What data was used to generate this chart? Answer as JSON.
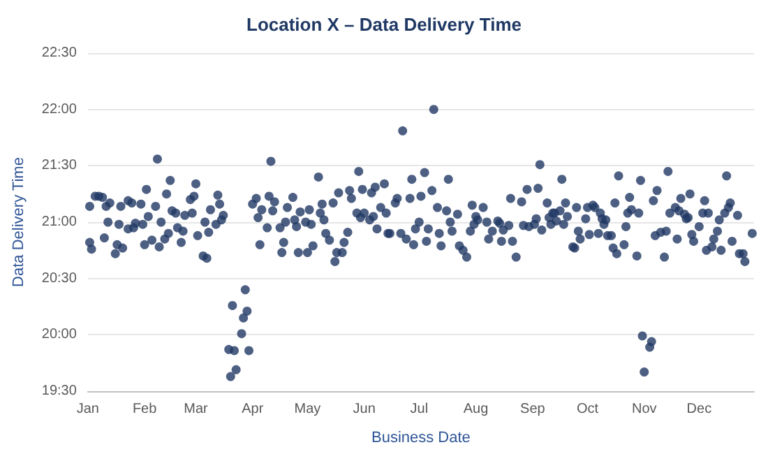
{
  "chart_data": {
    "type": "scatter",
    "title": "Location X – Data Delivery Time",
    "xlabel": "Business Date",
    "ylabel": "Data Delivery Time",
    "xlim": [
      "--01-01",
      "--12-31"
    ],
    "xticks": [
      {
        "value": "--01-01",
        "label": "Jan"
      },
      {
        "value": "--02-01",
        "label": "Feb"
      },
      {
        "value": "--03-01",
        "label": "Mar"
      },
      {
        "value": "--04-01",
        "label": "Apr"
      },
      {
        "value": "--05-01",
        "label": "May"
      },
      {
        "value": "--06-01",
        "label": "Jun"
      },
      {
        "value": "--07-01",
        "label": "Jul"
      },
      {
        "value": "--08-01",
        "label": "Aug"
      },
      {
        "value": "--09-01",
        "label": "Sep"
      },
      {
        "value": "--10-01",
        "label": "Oct"
      },
      {
        "value": "--11-01",
        "label": "Nov"
      },
      {
        "value": "--12-01",
        "label": "Dec"
      }
    ],
    "ylim": [
      19.5,
      22.5
    ],
    "yticks": [
      {
        "value": 19.5,
        "label": "19:30"
      },
      {
        "value": 20,
        "label": "20:00"
      },
      {
        "value": 20.5,
        "label": "20:30"
      },
      {
        "value": 21,
        "label": "21:00"
      },
      {
        "value": 21.5,
        "label": "21:30"
      },
      {
        "value": 22,
        "label": "22:00"
      },
      {
        "value": 22.5,
        "label": "22:30"
      }
    ],
    "grid": "y",
    "marker": "circle",
    "series": [
      {
        "color": "#203864",
        "x": [
          "--01-02",
          "--01-03",
          "--01-02",
          "--01-05",
          "--01-07",
          "--01-09",
          "--01-10",
          "--01-11",
          "--01-12",
          "--01-13",
          "--01-16",
          "--01-17",
          "--01-18",
          "--01-19",
          "--01-20",
          "--01-23",
          "--01-23",
          "--01-25",
          "--01-26",
          "--01-27",
          "--01-30",
          "--01-31",
          "--02-01",
          "--02-02",
          "--02-03",
          "--02-05",
          "--02-07",
          "--02-08",
          "--02-09",
          "--02-10",
          "--02-12",
          "--02-13",
          "--02-14",
          "--02-15",
          "--02-16",
          "--02-18",
          "--02-19",
          "--02-21",
          "--02-22",
          "--02-23",
          "--02-26",
          "--02-27",
          "--02-28",
          "--03-01",
          "--03-02",
          "--03-05",
          "--03-07",
          "--03-06",
          "--03-08",
          "--03-09",
          "--03-12",
          "--03-13",
          "--03-14",
          "--03-15",
          "--03-16",
          "--03-19",
          "--03-21",
          "--03-20",
          "--03-22",
          "--03-23",
          "--03-26",
          "--03-27",
          "--03-28",
          "--03-29",
          "--03-30",
          "--04-01",
          "--04-03",
          "--04-04",
          "--04-05",
          "--04-06",
          "--04-09",
          "--04-10",
          "--04-11",
          "--04-12",
          "--04-13",
          "--04-16",
          "--04-17",
          "--04-18",
          "--04-19",
          "--04-20",
          "--04-23",
          "--04-24",
          "--04-25",
          "--04-26",
          "--04-27",
          "--04-30",
          "--05-01",
          "--05-02",
          "--05-03",
          "--05-04",
          "--05-07",
          "--05-08",
          "--05-09",
          "--05-10",
          "--05-11",
          "--05-13",
          "--05-15",
          "--05-16",
          "--05-17",
          "--05-18",
          "--05-20",
          "--05-21",
          "--05-23",
          "--05-24",
          "--05-25",
          "--05-28",
          "--05-29",
          "--05-30",
          "--05-31",
          "--06-01",
          "--06-04",
          "--06-05",
          "--06-06",
          "--06-07",
          "--06-08",
          "--06-10",
          "--06-12",
          "--06-13",
          "--06-14",
          "--06-15",
          "--06-18",
          "--06-19",
          "--06-21",
          "--06-22",
          "--06-24",
          "--06-26",
          "--06-27",
          "--06-28",
          "--06-29",
          "--07-01",
          "--07-02",
          "--07-04",
          "--07-05",
          "--07-06",
          "--07-08",
          "--07-09",
          "--07-11",
          "--07-12",
          "--07-13",
          "--07-16",
          "--07-17",
          "--07-18",
          "--07-19",
          "--07-22",
          "--07-23",
          "--07-25",
          "--07-27",
          "--07-29",
          "--07-30",
          "--07-31",
          "--08-01",
          "--08-02",
          "--08-05",
          "--08-07",
          "--08-08",
          "--08-10",
          "--08-13",
          "--08-14",
          "--08-15",
          "--08-16",
          "--08-19",
          "--08-20",
          "--08-21",
          "--08-23",
          "--08-26",
          "--08-27",
          "--08-29",
          "--08-30",
          "--09-02",
          "--09-03",
          "--09-04",
          "--09-05",
          "--09-06",
          "--09-09",
          "--09-10",
          "--09-11",
          "--09-12",
          "--09-13",
          "--09-14",
          "--09-16",
          "--09-17",
          "--09-18",
          "--09-19",
          "--09-20",
          "--09-23",
          "--09-24",
          "--09-25",
          "--09-26",
          "--09-27",
          "--09-30",
          "--10-01",
          "--10-02",
          "--10-04",
          "--10-05",
          "--10-07",
          "--10-08",
          "--10-09",
          "--10-10",
          "--10-11",
          "--10-12",
          "--10-14",
          "--10-15",
          "--10-16",
          "--10-17",
          "--10-18",
          "--10-21",
          "--10-22",
          "--10-23",
          "--10-24",
          "--10-25",
          "--10-28",
          "--10-29",
          "--10-30",
          "--10-31",
          "--11-01",
          "--11-04",
          "--11-05",
          "--11-06",
          "--11-07",
          "--11-08",
          "--11-10",
          "--11-12",
          "--11-13",
          "--11-14",
          "--11-15",
          "--11-18",
          "--11-19",
          "--11-20",
          "--11-21",
          "--11-23",
          "--11-24",
          "--11-25",
          "--11-26",
          "--11-27",
          "--11-28",
          "--12-01",
          "--12-03",
          "--12-04",
          "--12-05",
          "--12-06",
          "--12-08",
          "--12-09",
          "--12-11",
          "--12-12",
          "--12-13",
          "--12-15",
          "--12-16",
          "--12-17",
          "--12-18",
          "--12-19",
          "--12-22",
          "--12-23",
          "--12-25",
          "--12-26",
          "--12-30"
        ],
        "values": [
          20.82,
          20.76,
          21.14,
          21.23,
          21.23,
          21.22,
          20.86,
          21.14,
          21.0,
          21.17,
          20.72,
          20.8,
          20.98,
          21.14,
          20.77,
          21.19,
          20.94,
          21.17,
          20.95,
          20.99,
          21.16,
          20.98,
          20.8,
          21.29,
          21.05,
          20.84,
          21.14,
          21.56,
          20.78,
          21.0,
          20.85,
          21.25,
          20.9,
          21.37,
          21.1,
          21.08,
          20.95,
          20.82,
          20.92,
          21.06,
          21.2,
          21.08,
          21.23,
          21.34,
          20.88,
          20.7,
          20.68,
          21.0,
          20.91,
          21.11,
          20.98,
          21.24,
          21.16,
          21.02,
          21.06,
          19.87,
          20.26,
          19.63,
          19.86,
          19.69,
          20.01,
          20.15,
          20.4,
          20.21,
          19.86,
          21.16,
          21.21,
          21.04,
          20.8,
          21.11,
          20.95,
          21.23,
          21.54,
          21.1,
          21.18,
          20.95,
          20.73,
          20.82,
          21.0,
          21.13,
          21.22,
          21.02,
          20.96,
          20.73,
          21.09,
          21.0,
          20.73,
          21.11,
          20.98,
          20.79,
          21.4,
          21.08,
          21.16,
          21.02,
          20.9,
          20.84,
          21.17,
          20.65,
          20.73,
          21.26,
          20.73,
          20.82,
          20.91,
          21.28,
          21.21,
          21.08,
          21.45,
          21.04,
          21.29,
          21.08,
          21.02,
          21.26,
          21.05,
          21.31,
          20.94,
          21.13,
          21.34,
          21.08,
          20.9,
          20.9,
          21.17,
          21.21,
          20.9,
          21.81,
          20.85,
          21.21,
          21.38,
          20.8,
          20.94,
          21.0,
          21.23,
          21.44,
          20.83,
          20.94,
          21.28,
          22.0,
          21.13,
          20.9,
          20.79,
          21.1,
          21.38,
          21.0,
          20.92,
          21.07,
          20.79,
          20.75,
          20.69,
          20.92,
          21.15,
          20.98,
          21.05,
          21.02,
          21.13,
          21.0,
          20.85,
          20.92,
          21.01,
          20.99,
          20.83,
          20.93,
          20.97,
          21.21,
          20.83,
          20.69,
          21.18,
          20.97,
          21.29,
          20.96,
          20.98,
          21.03,
          21.3,
          21.51,
          20.93,
          21.17,
          21.04,
          20.98,
          21.08,
          21.08,
          21.01,
          21.1,
          21.38,
          20.98,
          21.17,
          21.05,
          20.78,
          20.77,
          21.13,
          20.92,
          20.85,
          21.03,
          21.13,
          20.89,
          21.15,
          21.13,
          20.9,
          21.08,
          21.03,
          20.98,
          21.02,
          20.88,
          20.88,
          20.77,
          21.17,
          20.72,
          21.41,
          20.8,
          20.96,
          21.08,
          21.22,
          21.11,
          20.7,
          21.08,
          21.37,
          19.99,
          19.67,
          19.89,
          19.94,
          21.19,
          20.88,
          21.28,
          20.91,
          20.69,
          20.92,
          21.45,
          21.08,
          21.13,
          20.85,
          21.1,
          21.21,
          21.07,
          21.03,
          21.04,
          21.25,
          20.89,
          20.83,
          20.96,
          21.08,
          21.19,
          20.75,
          21.08,
          20.78,
          20.85,
          20.92,
          21.02,
          20.75,
          21.08,
          21.41,
          21.13,
          21.17,
          20.83,
          21.06,
          20.72,
          20.72,
          20.65,
          20.9
        ]
      }
    ]
  }
}
